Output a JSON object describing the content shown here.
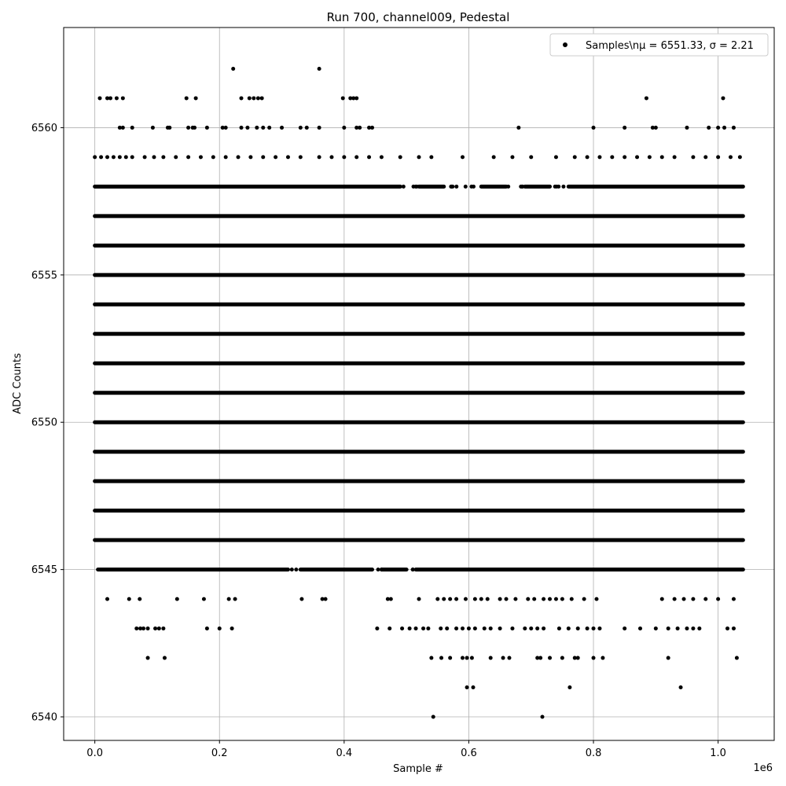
{
  "chart_data": {
    "type": "scatter",
    "title": "Run 700, channel009, Pedestal",
    "xlabel": "Sample #",
    "ylabel": "ADC Counts",
    "x_offset_label": "1e6",
    "xlim": [
      -0.05,
      1.09
    ],
    "ylim": [
      6539.2,
      6563.4
    ],
    "x_ticks": [
      0.0,
      0.2,
      0.4,
      0.6,
      0.8,
      1.0
    ],
    "x_tick_labels": [
      "0.0",
      "0.2",
      "0.4",
      "0.6",
      "0.8",
      "1.0"
    ],
    "y_ticks": [
      6540,
      6545,
      6550,
      6555,
      6560
    ],
    "y_tick_labels": [
      "6540",
      "6545",
      "6550",
      "6555",
      "6560"
    ],
    "grid": true,
    "legend": {
      "placement": "top-right",
      "entries": [
        {
          "marker": "dot",
          "label": "Samples\\nμ = 6551.33, σ = 2.21"
        }
      ]
    },
    "marker_color": "#000000",
    "series": [
      {
        "dense_levels": [
          {
            "y": 6546,
            "x": [
              0.0,
              1.04
            ]
          },
          {
            "y": 6547,
            "x": [
              0.0,
              1.04
            ]
          },
          {
            "y": 6548,
            "x": [
              0.0,
              1.04
            ]
          },
          {
            "y": 6549,
            "x": [
              0.0,
              1.04
            ]
          },
          {
            "y": 6550,
            "x": [
              0.0,
              1.04
            ]
          },
          {
            "y": 6551,
            "x": [
              0.0,
              1.04
            ]
          },
          {
            "y": 6552,
            "x": [
              0.0,
              1.04
            ]
          },
          {
            "y": 6553,
            "x": [
              0.0,
              1.04
            ]
          },
          {
            "y": 6554,
            "x": [
              0.0,
              1.04
            ]
          },
          {
            "y": 6555,
            "x": [
              0.0,
              1.04
            ]
          },
          {
            "y": 6556,
            "x": [
              0.0,
              1.04
            ]
          },
          {
            "y": 6557,
            "x": [
              0.0,
              1.04
            ]
          }
        ],
        "semi_dense_levels": [
          {
            "y": 6545,
            "x": [
              0.005,
              1.04
            ],
            "gaps": [
              [
                0.31,
                0.33
              ],
              [
                0.445,
                0.46
              ],
              [
                0.5,
                0.515
              ]
            ]
          },
          {
            "y": 6558,
            "x": [
              0.0,
              1.04
            ],
            "gaps": [
              [
                0.49,
                0.52
              ],
              [
                0.56,
                0.62
              ],
              [
                0.66,
                0.69
              ],
              [
                0.73,
                0.76
              ]
            ]
          }
        ],
        "sparse_points": {
          "6540": [
            0.543,
            0.718
          ],
          "6541": [
            0.597,
            0.607,
            0.762,
            0.94
          ],
          "6542": [
            0.085,
            0.112,
            0.54,
            0.556,
            0.57,
            0.59,
            0.597,
            0.605,
            0.635,
            0.655,
            0.665,
            0.71,
            0.715,
            0.73,
            0.75,
            0.77,
            0.775,
            0.8,
            0.815,
            0.92,
            1.03
          ],
          "6543": [
            0.067,
            0.073,
            0.078,
            0.085,
            0.097,
            0.103,
            0.11,
            0.18,
            0.2,
            0.22,
            0.453,
            0.473,
            0.493,
            0.505,
            0.515,
            0.527,
            0.535,
            0.555,
            0.565,
            0.58,
            0.59,
            0.6,
            0.61,
            0.625,
            0.635,
            0.65,
            0.67,
            0.69,
            0.7,
            0.71,
            0.72,
            0.745,
            0.76,
            0.775,
            0.79,
            0.8,
            0.81,
            0.85,
            0.875,
            0.9,
            0.92,
            0.935,
            0.95,
            0.96,
            0.97,
            1.015,
            1.025
          ],
          "6544": [
            0.02,
            0.055,
            0.072,
            0.132,
            0.175,
            0.215,
            0.225,
            0.332,
            0.365,
            0.37,
            0.47,
            0.475,
            0.52,
            0.55,
            0.56,
            0.57,
            0.58,
            0.595,
            0.61,
            0.62,
            0.63,
            0.65,
            0.66,
            0.675,
            0.695,
            0.705,
            0.72,
            0.73,
            0.74,
            0.75,
            0.765,
            0.785,
            0.805,
            0.91,
            0.93,
            0.945,
            0.96,
            0.98,
            1.0,
            1.025
          ],
          "6559": [
            0.0,
            0.01,
            0.02,
            0.03,
            0.04,
            0.05,
            0.06,
            0.08,
            0.095,
            0.11,
            0.13,
            0.15,
            0.17,
            0.19,
            0.21,
            0.23,
            0.25,
            0.27,
            0.29,
            0.31,
            0.33,
            0.36,
            0.38,
            0.4,
            0.42,
            0.44,
            0.46,
            0.49,
            0.52,
            0.54,
            0.59,
            0.64,
            0.67,
            0.7,
            0.74,
            0.77,
            0.79,
            0.81,
            0.83,
            0.85,
            0.87,
            0.89,
            0.91,
            0.93,
            0.96,
            0.98,
            1.0,
            1.02,
            1.035
          ],
          "6560": [
            0.04,
            0.045,
            0.06,
            0.093,
            0.117,
            0.12,
            0.15,
            0.157,
            0.16,
            0.18,
            0.205,
            0.21,
            0.235,
            0.245,
            0.26,
            0.27,
            0.28,
            0.3,
            0.33,
            0.34,
            0.36,
            0.4,
            0.42,
            0.425,
            0.44,
            0.445,
            0.68,
            0.8,
            0.85,
            0.895,
            0.9,
            0.95,
            0.985,
            1.0,
            1.01,
            1.025
          ],
          "6561": [
            0.008,
            0.02,
            0.025,
            0.035,
            0.045,
            0.147,
            0.162,
            0.235,
            0.248,
            0.255,
            0.262,
            0.268,
            0.398,
            0.41,
            0.415,
            0.42,
            0.885,
            1.008
          ],
          "6562": [
            0.222,
            0.36
          ]
        }
      }
    ]
  }
}
